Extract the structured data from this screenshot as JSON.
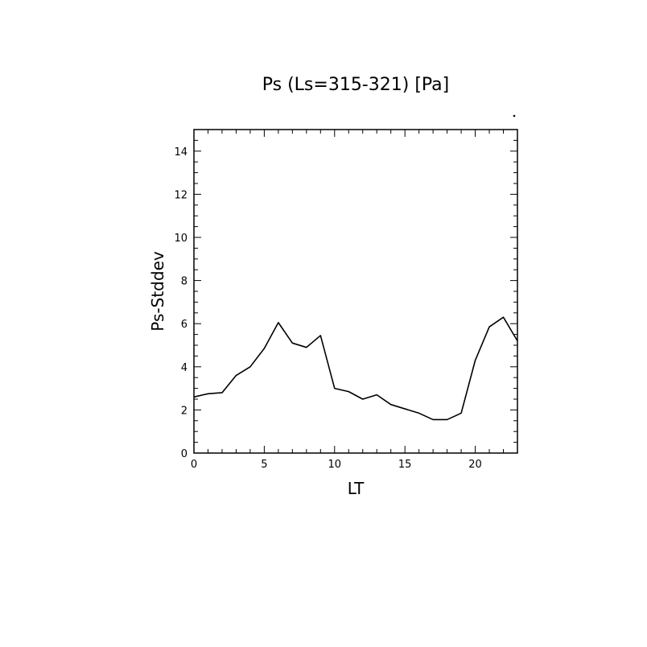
{
  "chart_data": {
    "type": "line",
    "title": "Ps (Ls=315-321) [Pa]",
    "xlabel": "LT",
    "ylabel": "Ps-Stddev",
    "xlim": [
      0,
      23
    ],
    "ylim": [
      0,
      15
    ],
    "x_ticks": [
      0,
      5,
      10,
      15,
      20
    ],
    "y_ticks": [
      0,
      2,
      4,
      6,
      8,
      10,
      12,
      14
    ],
    "x_tick_labels": [
      "0",
      "5",
      "10",
      "15",
      "20"
    ],
    "y_tick_labels": [
      "0",
      "2",
      "4",
      "6",
      "8",
      "10",
      "12",
      "14"
    ],
    "grid": false,
    "series": [
      {
        "x": [
          0,
          1,
          2,
          3,
          4,
          5,
          6,
          7,
          8,
          9,
          10,
          11,
          12,
          13,
          14,
          15,
          16,
          17,
          18,
          19,
          20,
          21,
          22,
          23
        ],
        "values": [
          2.6,
          2.75,
          2.8,
          3.6,
          4.0,
          4.85,
          6.05,
          5.1,
          4.9,
          5.45,
          3.0,
          2.85,
          2.5,
          2.7,
          2.25,
          2.05,
          1.85,
          1.55,
          1.55,
          1.85,
          4.3,
          5.85,
          6.3,
          5.2
        ]
      }
    ]
  }
}
